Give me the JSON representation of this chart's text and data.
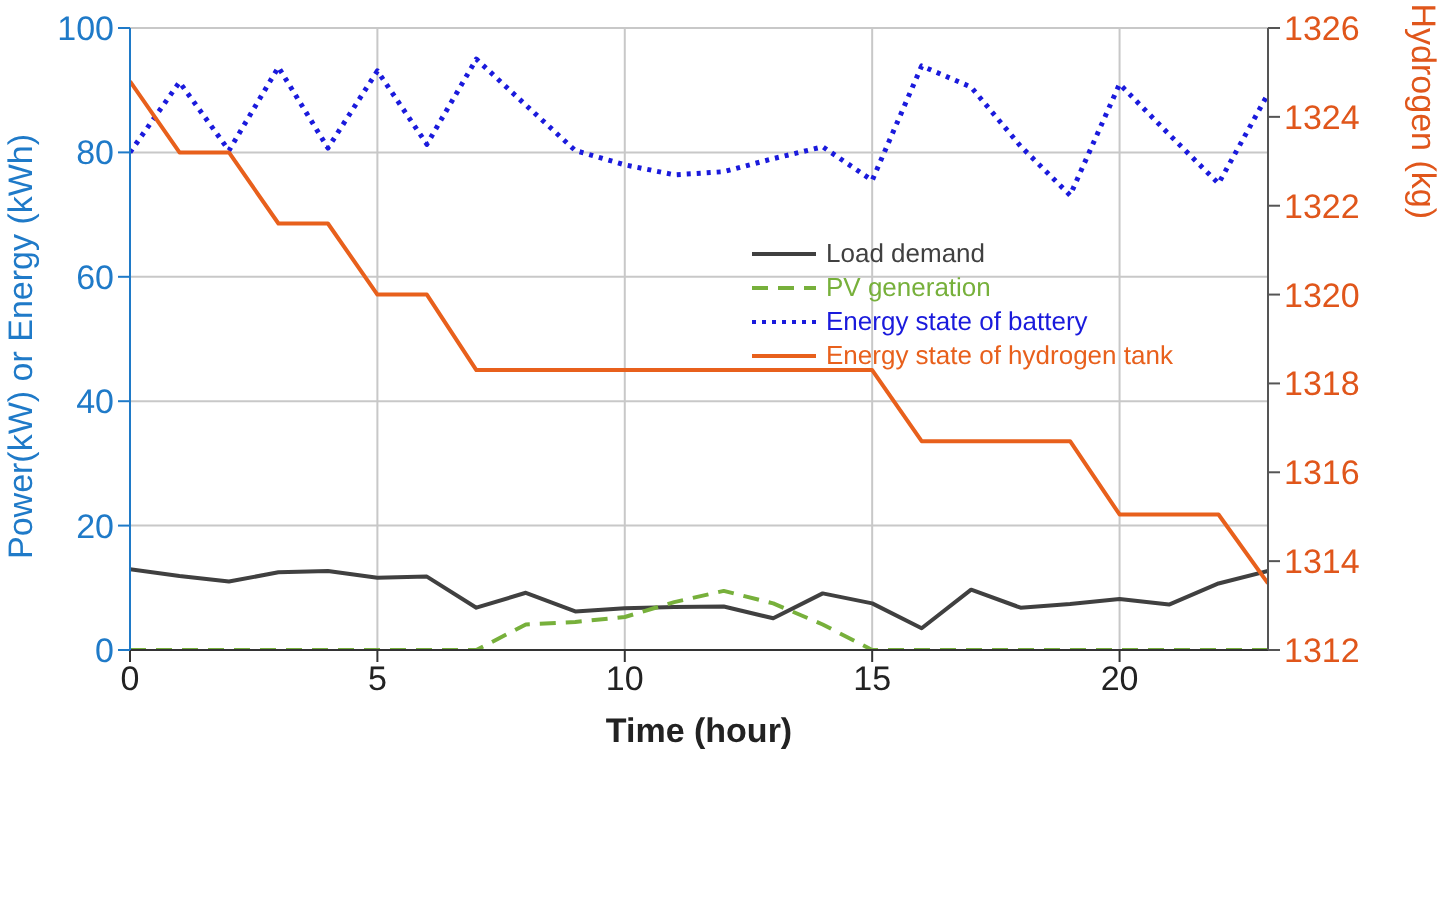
{
  "chart_data": {
    "type": "line",
    "xlabel": "Time (hour)",
    "ylabel": "Power(kW) or Energy (kWh)",
    "y2label": "Hydrogen (kg)",
    "x": [
      0,
      1,
      2,
      3,
      4,
      5,
      6,
      7,
      8,
      9,
      10,
      11,
      12,
      13,
      14,
      15,
      16,
      17,
      18,
      19,
      20,
      21,
      22,
      23
    ],
    "xlim": [
      0,
      23
    ],
    "xticks": [
      0,
      5,
      10,
      15,
      20
    ],
    "ylim": [
      0,
      100
    ],
    "yticks": [
      0,
      20,
      40,
      60,
      80,
      100
    ],
    "y2lim": [
      1312,
      1326
    ],
    "y2ticks": [
      1312,
      1314,
      1316,
      1318,
      1320,
      1322,
      1324,
      1326
    ],
    "grid": true,
    "legend": "right",
    "marker": "none",
    "series": [
      {
        "name": "Load demand",
        "color": "#404040",
        "line_style": "solid",
        "values": [
          13.0,
          11.9,
          11.0,
          12.5,
          12.7,
          11.6,
          11.8,
          6.8,
          9.2,
          6.2,
          6.7,
          6.9,
          7.0,
          5.1,
          9.1,
          7.5,
          3.5,
          9.7,
          6.8,
          7.4,
          8.2,
          7.3,
          10.7,
          12.7
        ]
      },
      {
        "name": "PV generation",
        "color": "#77b03b",
        "line_style": "dashed",
        "values": [
          0,
          0,
          0,
          0,
          0,
          0,
          0,
          0,
          4.1,
          4.5,
          5.3,
          7.7,
          9.5,
          7.5,
          4.1,
          0,
          0,
          0,
          0,
          0,
          0,
          0,
          0,
          0
        ]
      },
      {
        "name": "Energy state of battery",
        "color": "#1a1adc",
        "line_style": "dotted",
        "values": [
          80,
          91.3,
          80.3,
          93.7,
          80.7,
          93.1,
          81.3,
          95,
          87.6,
          80.3,
          78,
          76.4,
          76.9,
          79,
          80.9,
          75.5,
          93.9,
          90.5,
          81,
          73.1,
          91,
          82.9,
          75,
          89.4
        ]
      },
      {
        "name": "Energy state of hydrogen tank",
        "color": "#e8601c",
        "line_style": "solid",
        "axis": "y2",
        "values": [
          1324.8,
          1323.2,
          1323.2,
          1321.6,
          1321.6,
          1320.0,
          1320.0,
          1318.3,
          1318.3,
          1318.3,
          1318.3,
          1318.3,
          1318.3,
          1318.3,
          1318.3,
          1318.3,
          1316.7,
          1316.7,
          1316.7,
          1316.7,
          1315.05,
          1315.05,
          1315.05,
          1313.5
        ]
      }
    ]
  }
}
